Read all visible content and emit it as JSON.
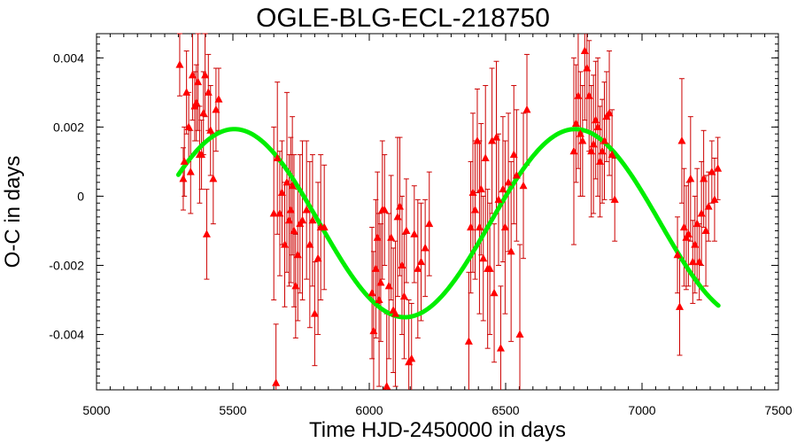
{
  "chart_data": {
    "type": "scatter",
    "title": "OGLE-BLG-ECL-218750",
    "xlabel": "Time HJD-2450000 in days",
    "ylabel": "O-C in days",
    "xlim": [
      5000,
      7500
    ],
    "ylim": [
      -0.0056,
      0.0047
    ],
    "xticks": [
      5000,
      5500,
      6000,
      6500,
      7000,
      7500
    ],
    "xtick_labels": [
      "5000",
      "5500",
      "6000",
      "6500",
      "7000",
      "7500"
    ],
    "yticks": [
      -0.004,
      -0.002,
      0,
      0.002,
      0.004
    ],
    "ytick_labels": [
      "-0.004",
      "-0.002",
      "0",
      "0.002",
      "0.004"
    ],
    "grid": false,
    "colors": {
      "points": "#ff0000",
      "errorbars": "#cc0000",
      "model": "#00ee00"
    },
    "series": [
      {
        "kind": "errorbar-points",
        "x": [
          5305,
          5318,
          5322,
          5330,
          5338,
          5345,
          5352,
          5360,
          5366,
          5372,
          5378,
          5385,
          5392,
          5398,
          5404,
          5410,
          5418,
          5428,
          5438,
          5448,
          5650,
          5658,
          5663,
          5672,
          5680,
          5690,
          5698,
          5706,
          5712,
          5718,
          5724,
          5730,
          5738,
          5746,
          5755,
          5770,
          5782,
          5792,
          5800,
          5812,
          5822,
          5835,
          6010,
          6016,
          6024,
          6030,
          6036,
          6042,
          6048,
          6056,
          6064,
          6072,
          6080,
          6088,
          6096,
          6104,
          6112,
          6120,
          6128,
          6136,
          6145,
          6155,
          6165,
          6178,
          6190,
          6205,
          6220,
          6365,
          6372,
          6380,
          6388,
          6396,
          6404,
          6410,
          6418,
          6426,
          6434,
          6442,
          6450,
          6458,
          6466,
          6474,
          6482,
          6490,
          6498,
          6510,
          6520,
          6530,
          6540,
          6552,
          6565,
          6578,
          6750,
          6758,
          6766,
          6774,
          6782,
          6790,
          6798,
          6806,
          6814,
          6822,
          6830,
          6838,
          6846,
          6854,
          6862,
          6870,
          6880,
          6890,
          6900,
          7130,
          7138,
          7146,
          7154,
          7162,
          7170,
          7178,
          7186,
          7194,
          7202,
          7210,
          7218,
          7226,
          7234,
          7244,
          7256,
          7266,
          7278
        ],
        "y": [
          0.0038,
          0.0005,
          0.001,
          0.003,
          0.002,
          0.0007,
          0.0035,
          0.0026,
          0.0027,
          0.0033,
          0.0012,
          0.0012,
          0.0024,
          0.0035,
          -0.0011,
          0.003,
          0.0019,
          0.0005,
          0.0025,
          0.0028,
          -0.0005,
          -0.0054,
          0.0011,
          -0.0005,
          0.0001,
          -0.0014,
          0.0004,
          -0.0007,
          -0.0004,
          0.0003,
          -0.001,
          -0.0026,
          -0.0017,
          -0.0008,
          -0.0007,
          -0.0004,
          -0.0014,
          -0.0007,
          -0.0034,
          -0.0018,
          -0.0009,
          -0.0009,
          -0.0028,
          -0.0039,
          -0.0021,
          -0.0012,
          -0.003,
          -0.0025,
          -0.0004,
          -0.0004,
          -0.0055,
          -0.0026,
          -0.0012,
          -0.0033,
          -0.0034,
          -0.0006,
          -0.0003,
          -0.002,
          -0.0029,
          -0.001,
          -0.0048,
          -0.0047,
          -0.0011,
          -0.0021,
          -0.0019,
          -0.0015,
          -0.0008,
          -0.0042,
          -0.0009,
          0.0001,
          -0.0004,
          0.0016,
          -0.0009,
          0.0002,
          -0.0018,
          0.0011,
          -0.0021,
          -0.0021,
          0.0016,
          -0.0028,
          0.0017,
          -0.0001,
          -0.0044,
          0.0002,
          -0.0009,
          0.0004,
          -0.0016,
          0.0012,
          0.0006,
          -0.004,
          0.0003,
          0.0025,
          0.0013,
          0.0021,
          0.0029,
          0.0018,
          0.0016,
          0.0042,
          0.0037,
          0.0029,
          0.0013,
          0.0015,
          0.0022,
          0.002,
          0.001,
          0.0013,
          0.0016,
          0.0023,
          0.0024,
          0.0012,
          -0.0001,
          -0.0017,
          -0.0032,
          0.0016,
          -0.0009,
          -0.0012,
          -0.0011,
          0.0005,
          -0.0019,
          -0.0014,
          -0.0008,
          -0.0019,
          -0.0005,
          0.0005,
          -0.001,
          -0.0003,
          0.0007,
          -0.0001,
          0.0008
        ],
        "yerr": [
          0.0009,
          0.0009,
          0.001,
          0.0012,
          0.001,
          0.0012,
          0.0013,
          0.001,
          0.0011,
          0.0014,
          0.0014,
          0.001,
          0.0012,
          0.0012,
          0.0013,
          0.0011,
          0.0013,
          0.0013,
          0.0012,
          0.0009,
          0.0025,
          0.0017,
          0.0022,
          0.0018,
          0.0015,
          0.0018,
          0.0026,
          0.0019,
          0.0021,
          0.002,
          0.0022,
          0.0015,
          0.0019,
          0.002,
          0.0023,
          0.002,
          0.0024,
          0.0019,
          0.0015,
          0.0022,
          0.0021,
          0.0018,
          0.0019,
          0.0023,
          0.002,
          0.0019,
          0.0025,
          0.0017,
          0.002,
          0.0016,
          0.0021,
          0.0021,
          0.0018,
          0.0018,
          0.0021,
          0.0023,
          0.002,
          0.002,
          0.0018,
          0.0015,
          0.0018,
          0.0016,
          0.0014,
          0.002,
          0.0017,
          0.0014,
          0.0015,
          0.002,
          0.0019,
          0.0023,
          0.002,
          0.0015,
          0.0025,
          0.0019,
          0.0018,
          0.0021,
          0.0023,
          0.0019,
          0.0021,
          0.002,
          0.0022,
          0.0019,
          0.0018,
          0.0021,
          0.0025,
          0.002,
          0.0026,
          0.002,
          0.0019,
          0.0026,
          0.0021,
          0.0016,
          0.0027,
          0.0017,
          0.0021,
          0.0018,
          0.0016,
          0.002,
          0.0018,
          0.0016,
          0.0019,
          0.002,
          0.0017,
          0.002,
          0.0016,
          0.0015,
          0.0017,
          0.0013,
          0.0018,
          0.0013,
          0.0012,
          0.0011,
          0.0014,
          0.0018,
          0.0017,
          0.0015,
          0.0015,
          0.0018,
          0.0012,
          0.0014,
          0.0016,
          0.0011,
          0.0015,
          0.0014,
          0.0016,
          0.001,
          0.0009,
          0.0012,
          0.0009
        ]
      },
      {
        "kind": "model-curve",
        "x_range": [
          5300,
          7280
        ],
        "mean": -0.00078,
        "amplitude": 0.00272,
        "period": 1250,
        "phase_center": 6755
      }
    ]
  }
}
